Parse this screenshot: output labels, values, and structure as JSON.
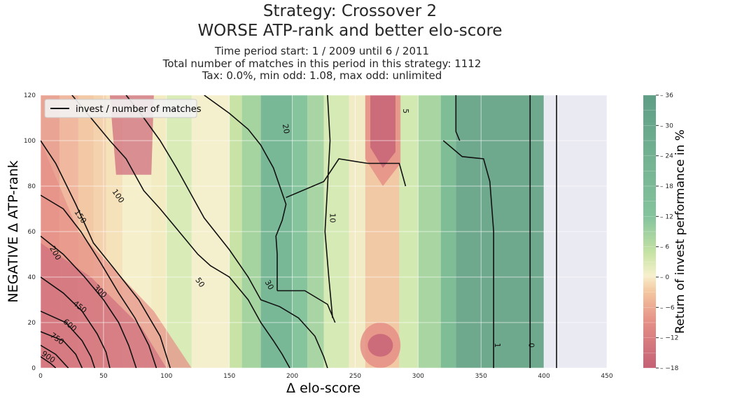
{
  "chart_data": {
    "type": "heatmap",
    "title_lines": [
      "Strategy: Crossover 2",
      "WORSE ATP-rank and better elo-score"
    ],
    "subtitle_lines": [
      "Time period start: 1 / 2009 until 6 / 2011",
      "Total number of matches in this period in this strategy: 1112",
      "Tax: 0.0%, min odd: 1.08, max odd: unlimited"
    ],
    "xlabel": "Δ elo-score",
    "ylabel": "NEGATIVE Δ ATP-rank",
    "xlim": [
      0,
      450
    ],
    "ylim": [
      0,
      120
    ],
    "x_ticks": [
      "0",
      "50",
      "100",
      "150",
      "200",
      "250",
      "300",
      "350",
      "400",
      "450"
    ],
    "y_ticks": [
      "0",
      "20",
      "40",
      "60",
      "80",
      "100",
      "120"
    ],
    "colorbar": {
      "label": "Return of invest performance in %",
      "ticks": [
        "36",
        "30",
        "24",
        "18",
        "12",
        "6",
        "0",
        "−6",
        "−12",
        "−18"
      ],
      "range": [
        -18,
        36
      ],
      "colormap": "RdYlGn"
    },
    "legend": {
      "label": "invest / number of matches",
      "position": "top-left"
    },
    "contour_labels": [
      "900",
      "750",
      "600",
      "450",
      "300",
      "200",
      "150",
      "100",
      "50",
      "30",
      "20",
      "10",
      "5",
      "1",
      "0"
    ],
    "grid": true,
    "data_extent_x": [
      0,
      400
    ]
  }
}
